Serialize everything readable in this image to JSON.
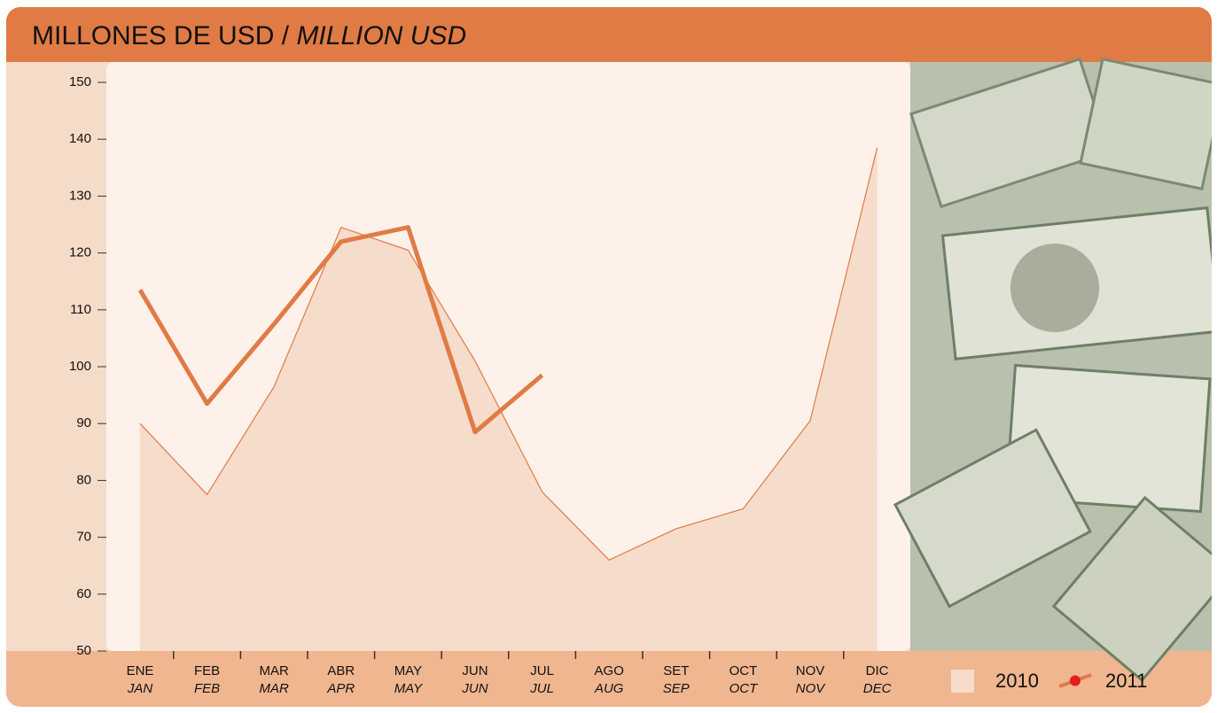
{
  "chart_data": {
    "type": "line",
    "title": "MILLONES DE USD",
    "title_separator": "/",
    "title_en": "MILLION USD",
    "categories": [
      "ENE",
      "FEB",
      "MAR",
      "ABR",
      "MAY",
      "JUN",
      "JUL",
      "AGO",
      "SET",
      "OCT",
      "NOV",
      "DIC"
    ],
    "categories_en": [
      "JAN",
      "FEB",
      "MAR",
      "APR",
      "MAY",
      "JUN",
      "JUL",
      "AUG",
      "SEP",
      "OCT",
      "NOV",
      "DEC"
    ],
    "series": [
      {
        "name": "2010",
        "style": "area",
        "color": "#e07b45",
        "fill": "#f6dccb",
        "values": [
          90,
          77.5,
          96.5,
          124.5,
          120.5,
          101,
          78,
          66,
          71.5,
          75,
          90.5,
          138.5
        ]
      },
      {
        "name": "2011",
        "style": "line",
        "color": "#e07b45",
        "values": [
          113.5,
          93.5,
          107.5,
          122,
          124.5,
          88.5,
          98.5,
          null,
          null,
          null,
          null,
          null
        ]
      }
    ],
    "ylim": [
      50,
      150
    ],
    "yticks": [
      50,
      60,
      70,
      80,
      90,
      100,
      110,
      120,
      130,
      140,
      150
    ]
  }
}
